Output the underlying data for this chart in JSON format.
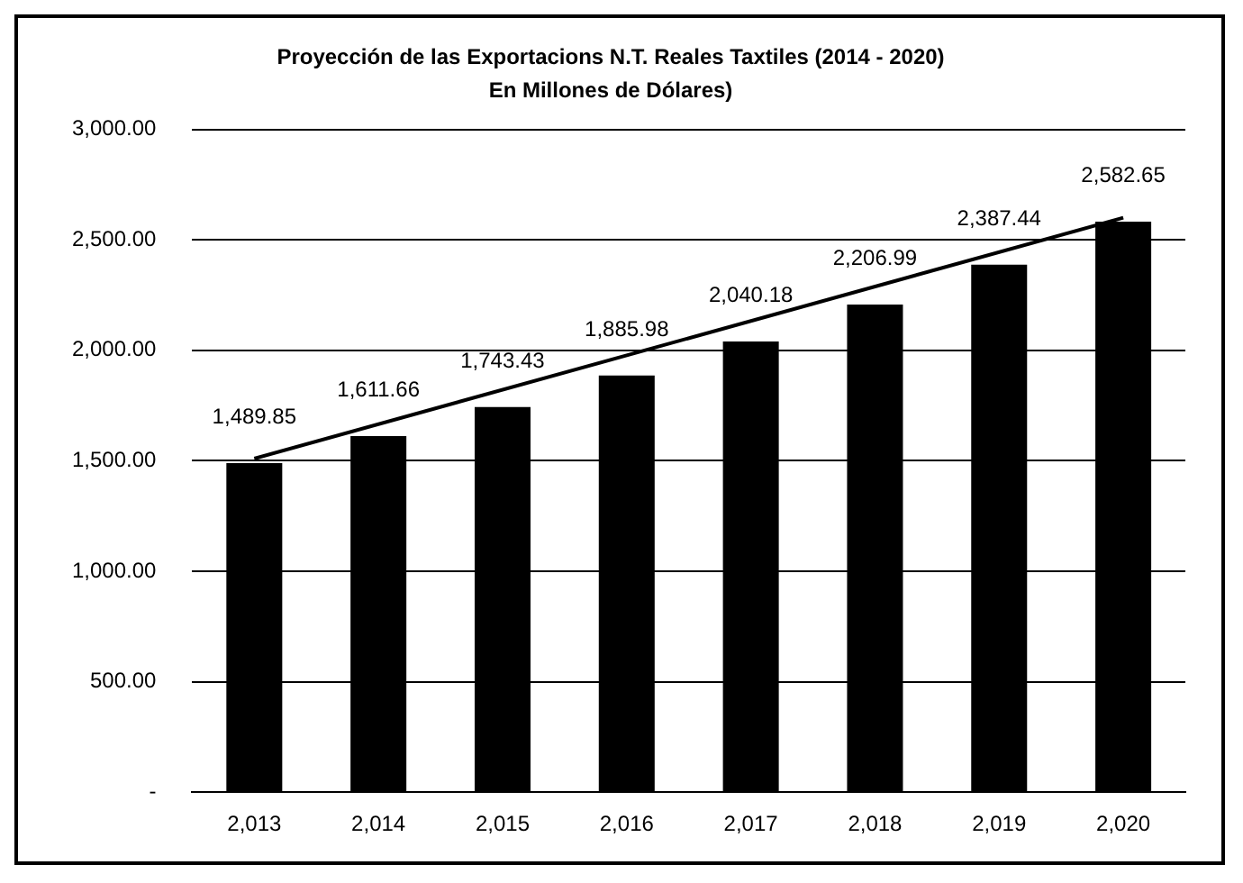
{
  "chart_data": {
    "type": "bar",
    "title": "Proyección de las Exportacions N.T. Reales Taxtiles (2014 - 2020)",
    "subtitle": "En Millones de Dólares)",
    "categories": [
      "2,013",
      "2,014",
      "2,015",
      "2,016",
      "2,017",
      "2,018",
      "2,019",
      "2,020"
    ],
    "series": [
      {
        "color": "#000000",
        "values": [
          1489.85,
          1611.66,
          1743.43,
          1885.98,
          2040.18,
          2206.99,
          2387.44,
          2582.65
        ],
        "value_labels": [
          "1,489.85",
          "1,611.66",
          "1,743.43",
          "1,885.98",
          "2,040.18",
          "2,206.99",
          "2,387.44",
          "2,582.65"
        ]
      },
      {
        "type": "line",
        "color": "#000000",
        "marker": "none",
        "x": [
          "2,013",
          "2,020"
        ],
        "values": [
          1510,
          2600
        ]
      }
    ],
    "ylim": [
      0,
      3000
    ],
    "yticks": [
      {
        "value": 0,
        "label": "-"
      },
      {
        "value": 500,
        "label": "500.00"
      },
      {
        "value": 1000,
        "label": "1,000.00"
      },
      {
        "value": 1500,
        "label": "1,500.00"
      },
      {
        "value": 2000,
        "label": "2,000.00"
      },
      {
        "value": 2500,
        "label": "2,500.00"
      },
      {
        "value": 3000,
        "label": "3,000.00"
      }
    ],
    "grid": "y",
    "legend": false
  }
}
